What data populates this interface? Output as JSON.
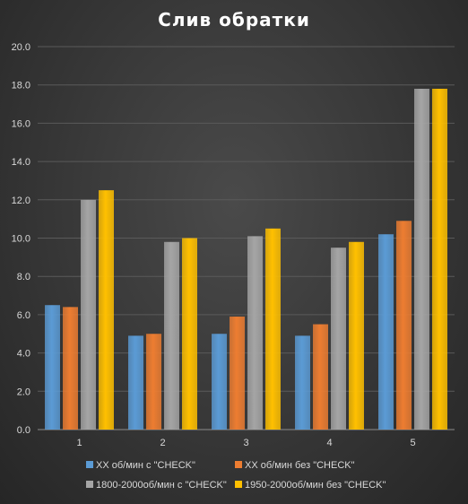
{
  "chart_data": {
    "type": "bar",
    "title": "Слив обратки",
    "xlabel": "",
    "ylabel": "",
    "categories": [
      "1",
      "2",
      "3",
      "4",
      "5"
    ],
    "ylim": [
      0,
      20
    ],
    "y_ticks": [
      "0.0",
      "2.0",
      "4.0",
      "6.0",
      "8.0",
      "10.0",
      "12.0",
      "14.0",
      "16.0",
      "18.0",
      "20.0"
    ],
    "grid": true,
    "legend_position": "bottom",
    "series": [
      {
        "name": "ХХ об/мин с \"CHECK\"",
        "color": "#5b9bd5",
        "values": [
          6.5,
          4.9,
          5.0,
          4.9,
          10.2
        ]
      },
      {
        "name": "ХХ об/мин без \"CHECK\"",
        "color": "#ed7d31",
        "values": [
          6.4,
          5.0,
          5.9,
          5.5,
          10.9
        ]
      },
      {
        "name": "1800-2000об/мин с \"CHECK\"",
        "color": "#a5a5a5",
        "values": [
          12.0,
          9.8,
          10.1,
          9.5,
          17.8
        ]
      },
      {
        "name": "1950-2000об/мин без \"CHECK\"",
        "color": "#ffc000",
        "values": [
          12.5,
          10.0,
          10.5,
          9.8,
          17.8
        ]
      }
    ]
  }
}
